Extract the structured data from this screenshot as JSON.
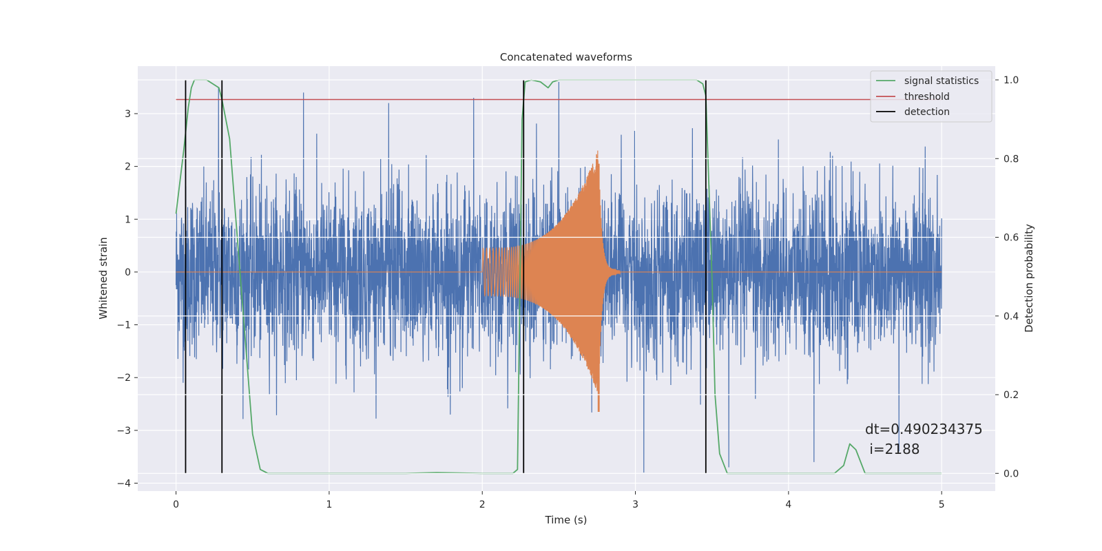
{
  "chart_data": {
    "type": "line",
    "title": "Concatenated waveforms",
    "xlabel": "Time (s)",
    "ylabel": "Whitened strain",
    "y2label": "Detection probability",
    "xlim": [
      -0.25,
      5.35
    ],
    "ylim": [
      -4.15,
      3.9
    ],
    "y2lim": [
      -0.045,
      1.035
    ],
    "x_ticks": [
      0,
      1,
      2,
      3,
      4,
      5
    ],
    "y_ticks": [
      -4,
      -3,
      -2,
      -1,
      0,
      1,
      2,
      3
    ],
    "y2_ticks": [
      0.0,
      0.2,
      0.4,
      0.6,
      0.8,
      1.0
    ],
    "y2_tick_labels": [
      "0.0",
      "0.2",
      "0.4",
      "0.6",
      "0.8",
      "1.0"
    ],
    "grid": true,
    "legend_position": "top-right",
    "colors": {
      "background": "#eaeaf2",
      "strain": "#4c72b0",
      "template": "#dd8452",
      "signal_statistics": "#55a868",
      "threshold": "#c44e52",
      "detection": "#000000"
    },
    "series": [
      {
        "name": "signal statistics",
        "axis": "right",
        "x": [
          0,
          0.05,
          0.08,
          0.1,
          0.12,
          0.2,
          0.28,
          0.3,
          0.35,
          0.4,
          0.45,
          0.5,
          0.55,
          0.6,
          1.0,
          1.5,
          1.7,
          2.0,
          2.2,
          2.23,
          2.26,
          2.28,
          2.32,
          2.38,
          2.43,
          2.46,
          2.5,
          3.0,
          3.4,
          3.44,
          3.46,
          3.5,
          3.52,
          3.55,
          3.6,
          4.0,
          4.3,
          4.36,
          4.4,
          4.44,
          4.5,
          4.7,
          5.0
        ],
        "y": [
          0.66,
          0.82,
          0.93,
          0.98,
          1.0,
          1.0,
          0.98,
          0.95,
          0.85,
          0.6,
          0.35,
          0.1,
          0.01,
          0.0,
          0.0,
          0.0,
          0.002,
          0.0,
          0.0,
          0.01,
          0.9,
          0.995,
          1.0,
          0.995,
          0.98,
          0.995,
          1.0,
          1.0,
          1.0,
          0.99,
          0.96,
          0.5,
          0.2,
          0.05,
          0.0,
          0.0,
          0.0,
          0.02,
          0.075,
          0.06,
          0.0,
          0.0,
          0.0
        ]
      },
      {
        "name": "threshold",
        "axis": "right",
        "x": [
          0,
          5.0
        ],
        "y": [
          0.95,
          0.95
        ]
      },
      {
        "name": "detection",
        "axis": "right",
        "x": [
          0.0625,
          0.3,
          2.27,
          3.46
        ],
        "y_range": [
          0.0,
          1.0
        ]
      },
      {
        "axis": "left",
        "description_type": "noise",
        "x_range": [
          0,
          5.0
        ],
        "envelope_sigma": 0.8,
        "peak_values": [
          3.5,
          3.4,
          3.2,
          3.3,
          3.6,
          -3.8,
          -3.7,
          -3.6,
          -3.4
        ]
      },
      {
        "axis": "left",
        "description_type": "chirp",
        "x_range": [
          2.0,
          2.9
        ],
        "peak_amplitude": 2.05,
        "trough_amplitude": -2.65,
        "peak_time": 2.76
      }
    ],
    "annotation": {
      "line1": "dt=0.490234375",
      "line2": " i=2188"
    },
    "legend": [
      "signal statistics",
      "threshold",
      "detection"
    ]
  }
}
